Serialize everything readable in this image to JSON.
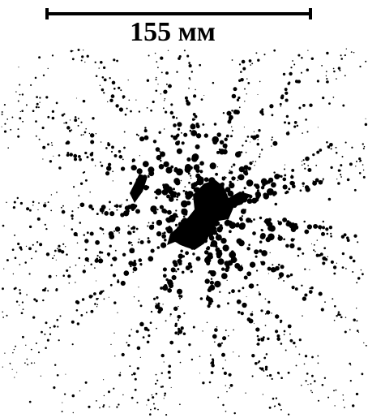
{
  "scale_bar": {
    "label": "155 мм"
  }
}
